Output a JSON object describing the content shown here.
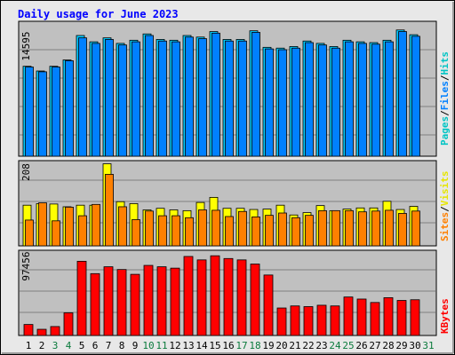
{
  "title": "Daily usage for June 2023",
  "colors": {
    "frame_bg": "#e8e8e8",
    "plot_bg": "#c0c0c0",
    "title": "#0000ff",
    "hits": "#00ccff",
    "files": "#0080ff",
    "pages": "#00c4c4",
    "visits": "#ffff00",
    "sites": "#ff8000",
    "kbytes": "#ff0000",
    "weekend_day": "#0a7a3c",
    "weekday": "#000000"
  },
  "chart_data": [
    {
      "type": "bar",
      "panel": "hits_files_pages",
      "y_tick_label": "14595",
      "ylim": [
        0,
        17100
      ],
      "right_label": [
        "Pages",
        "Files",
        "Hits"
      ],
      "x": [
        1,
        2,
        3,
        4,
        5,
        6,
        7,
        8,
        9,
        10,
        11,
        12,
        13,
        14,
        15,
        16,
        17,
        18,
        19,
        20,
        21,
        22,
        23,
        24,
        25,
        26,
        27,
        28,
        29,
        30
      ],
      "series": [
        {
          "name": "Hits",
          "values": [
            11400,
            10800,
            11400,
            12200,
            15300,
            14500,
            15000,
            14300,
            14700,
            15500,
            14800,
            14700,
            15300,
            15100,
            15800,
            14800,
            14800,
            15900,
            13800,
            13700,
            13900,
            14600,
            14300,
            13900,
            14700,
            14500,
            14400,
            14700,
            16000,
            15400
          ]
        },
        {
          "name": "Files",
          "values": [
            11300,
            10700,
            11300,
            12100,
            15000,
            14300,
            14800,
            14100,
            14500,
            15300,
            14600,
            14500,
            15100,
            14900,
            15600,
            14600,
            14600,
            15700,
            13600,
            13500,
            13700,
            14400,
            14100,
            13700,
            14500,
            14300,
            14200,
            14500,
            15800,
            15200
          ]
        }
      ]
    },
    {
      "type": "bar",
      "panel": "visits_sites",
      "y_tick_label": "208",
      "ylim": [
        0,
        218
      ],
      "right_label": [
        "Sites",
        "Visits"
      ],
      "x": [
        1,
        2,
        3,
        4,
        5,
        6,
        7,
        8,
        9,
        10,
        11,
        12,
        13,
        14,
        15,
        16,
        17,
        18,
        19,
        20,
        21,
        22,
        23,
        24,
        25,
        26,
        27,
        28,
        29,
        30
      ],
      "series": [
        {
          "name": "Visits",
          "values": [
            104,
            108,
            107,
            100,
            104,
            104,
            210,
            113,
            108,
            92,
            96,
            92,
            90,
            111,
            124,
            96,
            96,
            93,
            94,
            104,
            79,
            85,
            103,
            90,
            94,
            97,
            97,
            114,
            93,
            101
          ]
        },
        {
          "name": "Sites",
          "values": [
            66,
            110,
            64,
            99,
            77,
            106,
            183,
            100,
            67,
            89,
            77,
            77,
            72,
            92,
            91,
            75,
            88,
            74,
            78,
            84,
            72,
            78,
            90,
            90,
            90,
            87,
            89,
            91,
            83,
            89
          ]
        }
      ]
    },
    {
      "type": "bar",
      "panel": "kbytes",
      "y_tick_label": "97456",
      "ylim": [
        0,
        124000
      ],
      "right_label": [
        "KBytes"
      ],
      "x": [
        1,
        2,
        3,
        4,
        5,
        6,
        7,
        8,
        9,
        10,
        11,
        12,
        13,
        14,
        15,
        16,
        17,
        18,
        19,
        20,
        21,
        22,
        23,
        24,
        25,
        26,
        27,
        28,
        29,
        30
      ],
      "series": [
        {
          "name": "KBytes",
          "values": [
            16000,
            9000,
            13000,
            33000,
            108000,
            90000,
            100000,
            96000,
            89000,
            102000,
            100000,
            98000,
            115000,
            110000,
            116000,
            112000,
            110000,
            104000,
            88000,
            40000,
            43000,
            42000,
            44000,
            43000,
            56000,
            53000,
            48000,
            55000,
            51000,
            52000
          ]
        }
      ]
    }
  ],
  "x_labels": [
    "1",
    "2",
    "3",
    "4",
    "5",
    "6",
    "7",
    "8",
    "9",
    "10",
    "11",
    "12",
    "13",
    "14",
    "15",
    "16",
    "17",
    "18",
    "19",
    "20",
    "21",
    "22",
    "23",
    "24",
    "25",
    "26",
    "27",
    "28",
    "29",
    "30",
    "31"
  ],
  "weekend_days": [
    3,
    4,
    10,
    11,
    17,
    18,
    24,
    25,
    31
  ]
}
